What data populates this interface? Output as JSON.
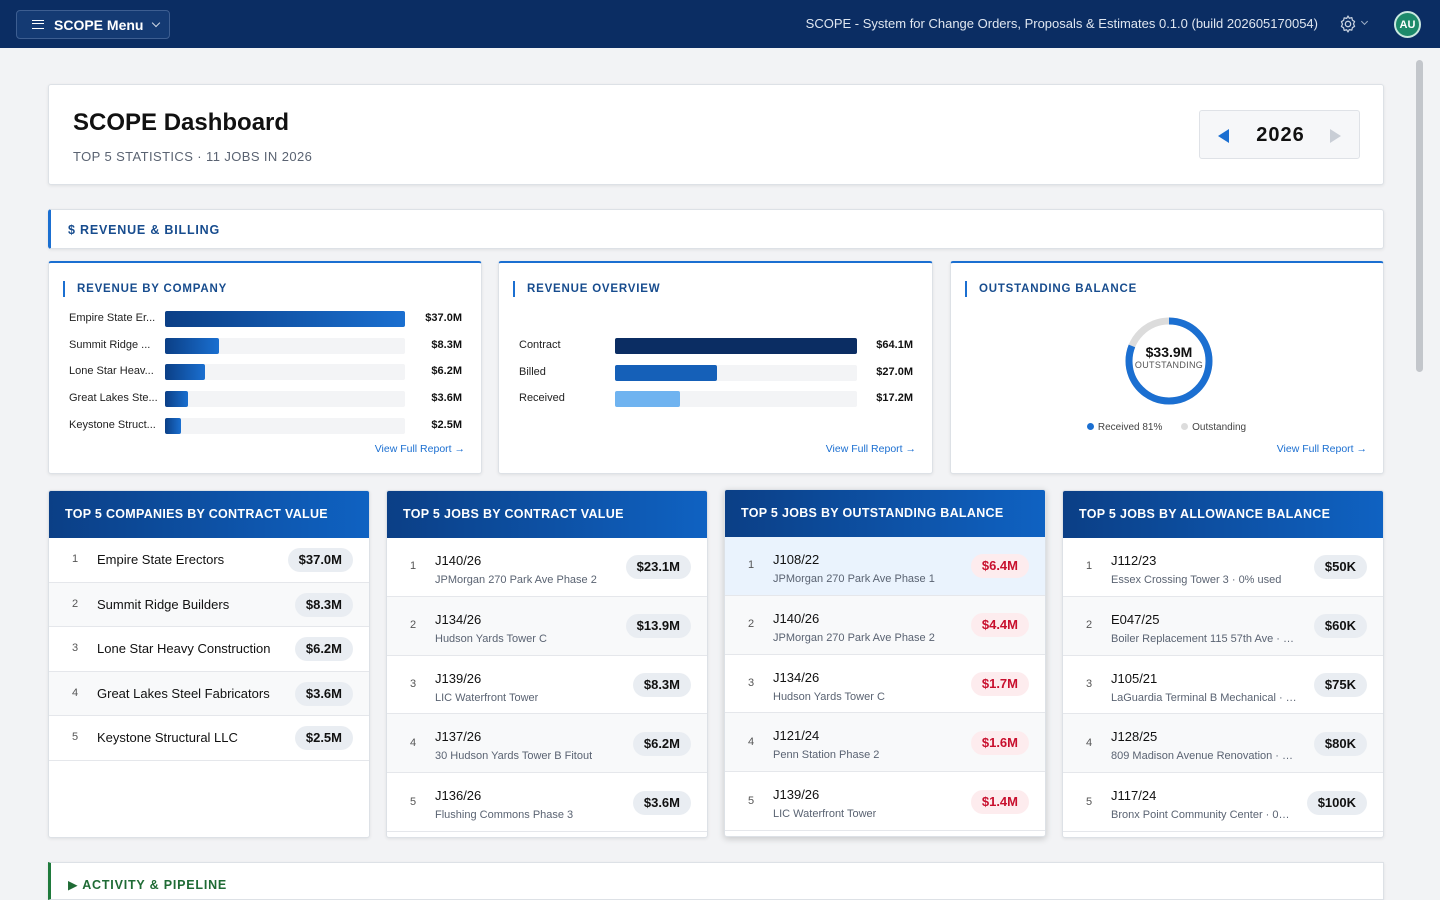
{
  "topbar": {
    "menu_label": "SCOPE Menu",
    "app_title": "SCOPE - System for Change Orders, Proposals & Estimates 0.1.0 (build 202605170054)",
    "avatar_initials": "AU"
  },
  "header": {
    "title": "SCOPE Dashboard",
    "subtitle": "TOP 5 STATISTICS · 11 JOBS IN 2026",
    "year": "2026"
  },
  "sections": {
    "revenue": "$ REVENUE & BILLING",
    "activity": "▶ ACTIVITY & PIPELINE"
  },
  "revenue_by_company": {
    "title": "REVENUE BY COMPANY",
    "link": "View Full Report →",
    "max": 37.0,
    "rows": [
      {
        "label": "Empire State Er...",
        "value": 37.0,
        "display": "$37.0M"
      },
      {
        "label": "Summit Ridge ...",
        "value": 8.3,
        "display": "$8.3M"
      },
      {
        "label": "Lone Star Heav...",
        "value": 6.2,
        "display": "$6.2M"
      },
      {
        "label": "Great Lakes Ste...",
        "value": 3.6,
        "display": "$3.6M"
      },
      {
        "label": "Keystone Struct...",
        "value": 2.5,
        "display": "$2.5M"
      }
    ]
  },
  "revenue_overview": {
    "title": "REVENUE OVERVIEW",
    "link": "View Full Report →",
    "max": 64.1,
    "rows": [
      {
        "label": "Contract",
        "value": 64.1,
        "display": "$64.1M",
        "color": "#0b2d63"
      },
      {
        "label": "Billed",
        "value": 27.0,
        "display": "$27.0M",
        "color": "#1560b8"
      },
      {
        "label": "Received",
        "value": 17.2,
        "display": "$17.2M",
        "color": "#6fb3f0"
      }
    ]
  },
  "outstanding_balance": {
    "title": "OUTSTANDING BALANCE",
    "value": "$33.9M",
    "label": "OUTSTANDING",
    "received_fraction": 0.81,
    "legend_received": "Received 81%",
    "legend_outstanding": "Outstanding",
    "link": "View Full Report →",
    "colors": {
      "received": "#1b6fd1",
      "outstanding": "#dcdcdc"
    }
  },
  "top_companies": {
    "title": "TOP 5 COMPANIES BY CONTRACT VALUE",
    "rows": [
      {
        "rank": "1",
        "name": "Empire State Erectors",
        "value": "$37.0M"
      },
      {
        "rank": "2",
        "name": "Summit Ridge Builders",
        "value": "$8.3M"
      },
      {
        "rank": "3",
        "name": "Lone Star Heavy Construction",
        "value": "$6.2M"
      },
      {
        "rank": "4",
        "name": "Great Lakes Steel Fabricators",
        "value": "$3.6M"
      },
      {
        "rank": "5",
        "name": "Keystone Structural LLC",
        "value": "$2.5M"
      }
    ]
  },
  "top_jobs_contract": {
    "title": "TOP 5 JOBS BY CONTRACT VALUE",
    "rows": [
      {
        "rank": "1",
        "job": "J140/26",
        "desc": "JPMorgan 270 Park Ave Phase 2",
        "value": "$23.1M"
      },
      {
        "rank": "2",
        "job": "J134/26",
        "desc": "Hudson Yards Tower C",
        "value": "$13.9M"
      },
      {
        "rank": "3",
        "job": "J139/26",
        "desc": "LIC Waterfront Tower",
        "value": "$8.3M"
      },
      {
        "rank": "4",
        "job": "J137/26",
        "desc": "30 Hudson Yards Tower B Fitout",
        "value": "$6.2M"
      },
      {
        "rank": "5",
        "job": "J136/26",
        "desc": "Flushing Commons Phase 3",
        "value": "$3.6M"
      }
    ]
  },
  "top_jobs_outstanding": {
    "title": "TOP 5 JOBS BY OUTSTANDING BALANCE",
    "rows": [
      {
        "rank": "1",
        "job": "J108/22",
        "desc": "JPMorgan 270 Park Ave Phase 1",
        "value": "$6.4M"
      },
      {
        "rank": "2",
        "job": "J140/26",
        "desc": "JPMorgan 270 Park Ave Phase 2",
        "value": "$4.4M"
      },
      {
        "rank": "3",
        "job": "J134/26",
        "desc": "Hudson Yards Tower C",
        "value": "$1.7M"
      },
      {
        "rank": "4",
        "job": "J121/24",
        "desc": "Penn Station Phase 2",
        "value": "$1.6M"
      },
      {
        "rank": "5",
        "job": "J139/26",
        "desc": "LIC Waterfront Tower",
        "value": "$1.4M"
      }
    ]
  },
  "top_jobs_allowance": {
    "title": "TOP 5 JOBS BY ALLOWANCE BALANCE",
    "rows": [
      {
        "rank": "1",
        "job": "J112/23",
        "desc": "Essex Crossing Tower 3 · 0% used",
        "value": "$50K"
      },
      {
        "rank": "2",
        "job": "E047/25",
        "desc": "Boiler Replacement 115 57th Ave · 0...",
        "value": "$60K"
      },
      {
        "rank": "3",
        "job": "J105/21",
        "desc": "LaGuardia Terminal B Mechanical · 0...",
        "value": "$75K"
      },
      {
        "rank": "4",
        "job": "J128/25",
        "desc": "809 Madison Avenue Renovation · 0...",
        "value": "$80K"
      },
      {
        "rank": "5",
        "job": "J117/24",
        "desc": "Bronx Point Community Center · 0%...",
        "value": "$100K"
      }
    ]
  }
}
